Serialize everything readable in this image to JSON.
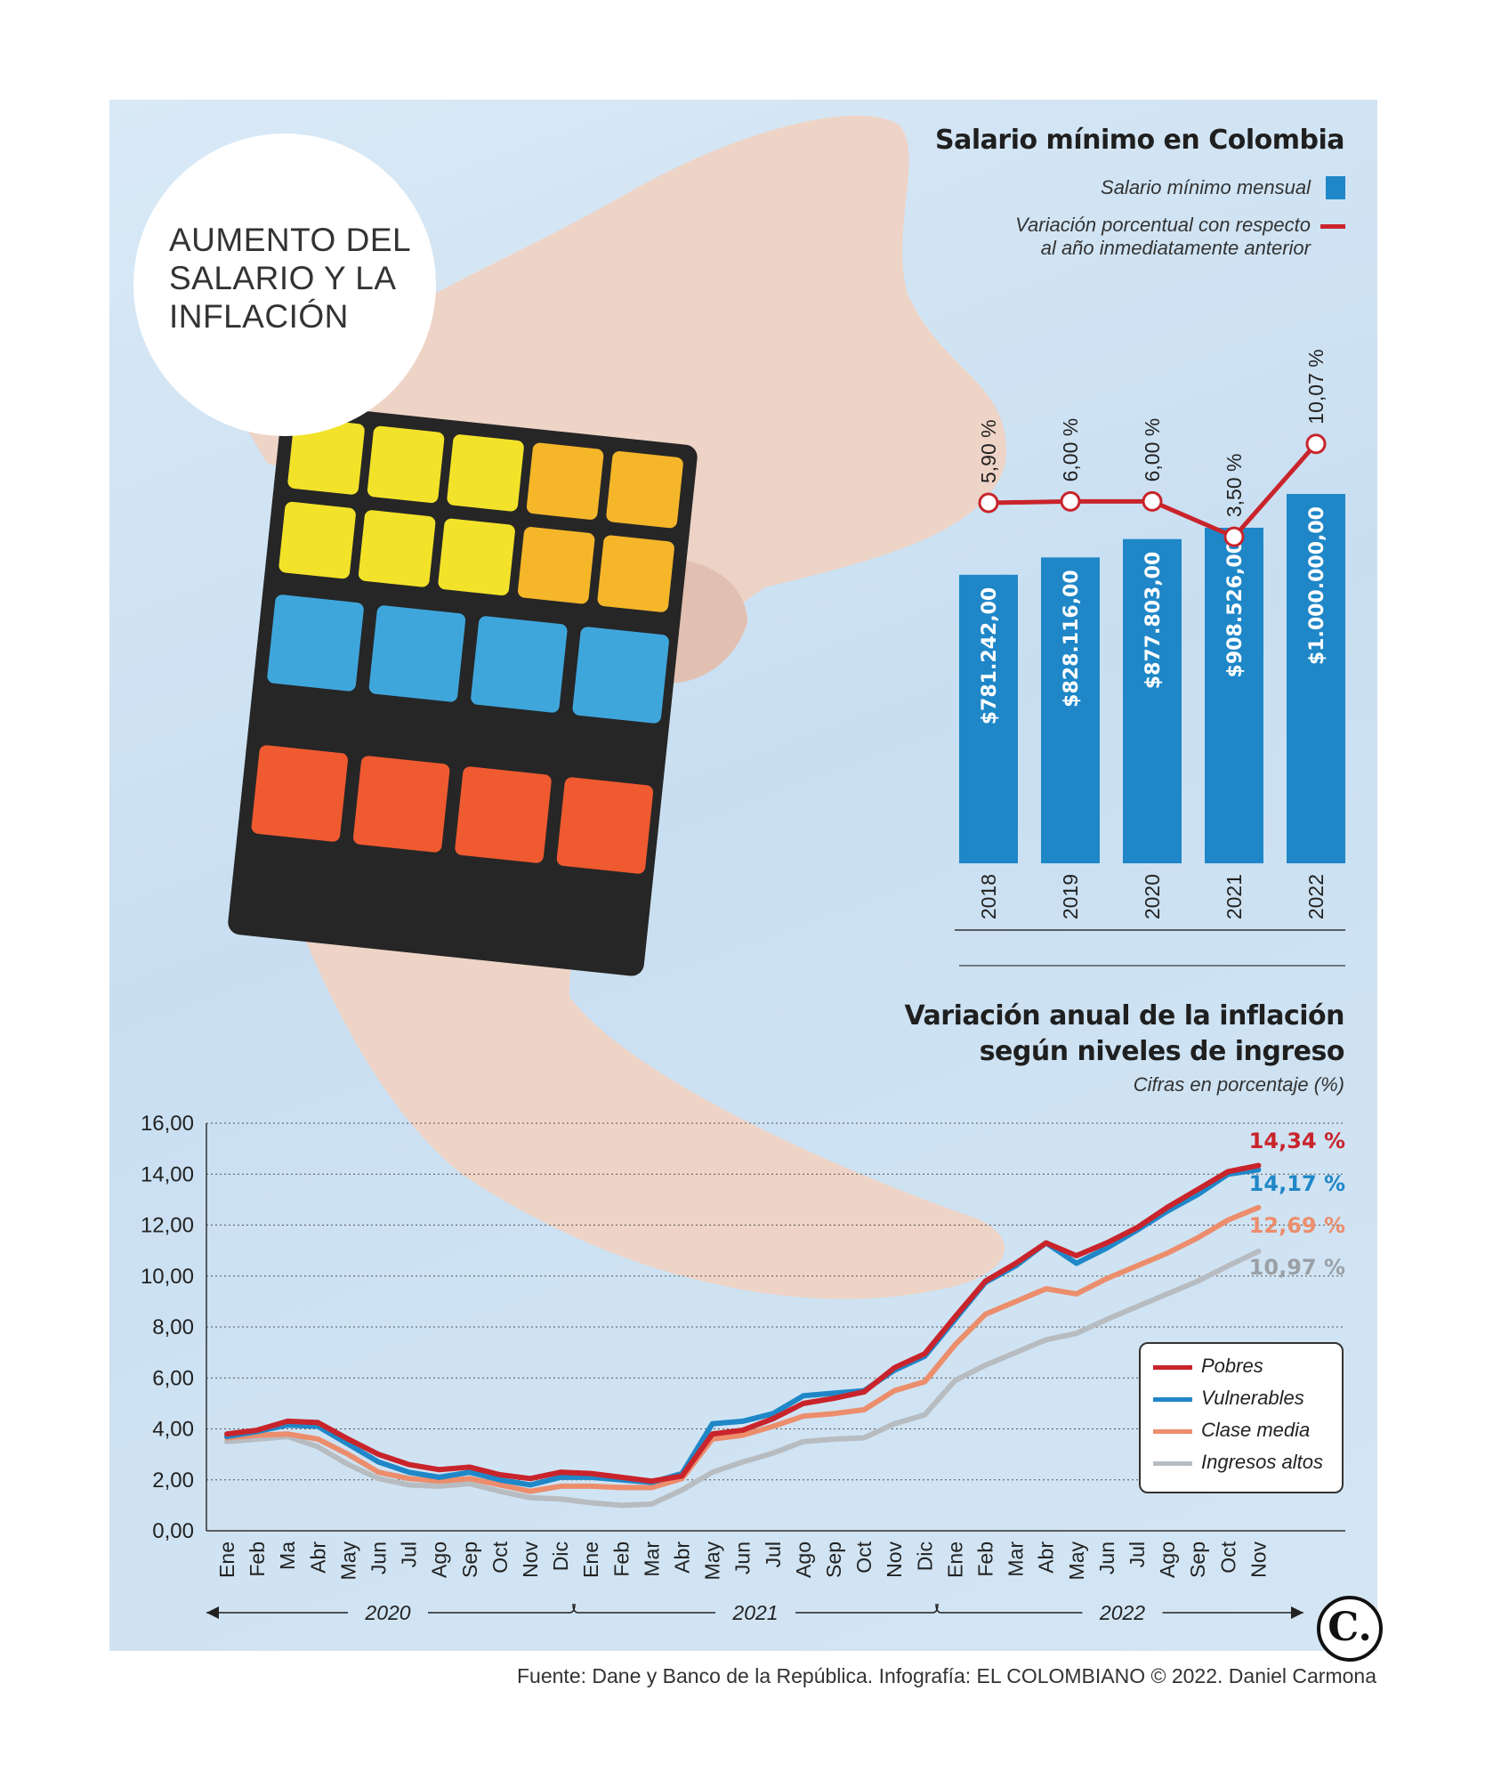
{
  "main_title": "AUMENTO DEL SALARIO Y LA INFLACIÓN",
  "source_text": "Fuente: Dane y Banco de la República. Infografía: EL COLOMBIANO © 2022. Daniel Carmona",
  "logo_letter": "C.",
  "colors": {
    "bar": "#1f87c8",
    "pct_line": "#c9242b",
    "pobres": "#c9242b",
    "vulnerables": "#1f87c8",
    "clase_media": "#ec8d6c",
    "ingresos_altos": "#b7bcc1"
  },
  "chart_data": [
    {
      "type": "bar",
      "title": "Salario mínimo en Colombia",
      "legend": {
        "bar_label": "Salario mínimo mensual",
        "line_label_1": "Variación porcentual con respecto",
        "line_label_2": "al año inmediatamente anterior"
      },
      "categories": [
        "2018",
        "2019",
        "2020",
        "2021",
        "2022"
      ],
      "values": [
        781242,
        828116,
        877803,
        908526,
        1000000
      ],
      "value_labels": [
        "$781.242,00",
        "$828.116,00",
        "$877.803,00",
        "$908.526,00",
        "$1.000.000,00"
      ],
      "line_series": {
        "values": [
          5.9,
          6.0,
          6.0,
          3.5,
          10.07
        ],
        "labels": [
          "5,90 %",
          "6,00 %",
          "6,00 %",
          "3,50 %",
          "10,07 %"
        ]
      }
    },
    {
      "type": "line",
      "title_line1": "Variación anual de la inflación",
      "title_line2": "según niveles de ingreso",
      "subtitle": "Cifras en porcentaje (%)",
      "ylim": [
        0,
        16
      ],
      "y_ticks": [
        "0,00",
        "2,00",
        "4,00",
        "6,00",
        "8,00",
        "10,00",
        "12,00",
        "14,00",
        "16,00"
      ],
      "x_labels": [
        "Ene",
        "Feb",
        "Ma",
        "Abr",
        "May",
        "Jun",
        "Jul",
        "Ago",
        "Sep",
        "Oct",
        "Nov",
        "Dic",
        "Ene",
        "Feb",
        "Mar",
        "Abr",
        "May",
        "Jun",
        "Jul",
        "Ago",
        "Sep",
        "Oct",
        "Nov",
        "Dic",
        "Ene",
        "Feb",
        "Mar",
        "Abr",
        "May",
        "Jun",
        "Jul",
        "Ago",
        "Sep",
        "Oct",
        "Nov"
      ],
      "year_labels": [
        "2020",
        "2021",
        "2022"
      ],
      "series": [
        {
          "name": "Pobres",
          "end_label": "14,34 %",
          "values": [
            3.8,
            3.95,
            4.3,
            4.25,
            3.6,
            3.0,
            2.6,
            2.4,
            2.5,
            2.2,
            2.05,
            2.3,
            2.25,
            2.1,
            1.95,
            2.15,
            3.8,
            3.95,
            4.4,
            5.0,
            5.2,
            5.45,
            6.4,
            6.95,
            8.4,
            9.8,
            10.5,
            11.3,
            10.8,
            11.3,
            11.9,
            12.7,
            13.4,
            14.1,
            14.34
          ]
        },
        {
          "name": "Vulnerables",
          "end_label": "14,17 %",
          "values": [
            3.7,
            3.9,
            4.15,
            4.1,
            3.4,
            2.7,
            2.3,
            2.1,
            2.3,
            2.0,
            1.8,
            2.1,
            2.1,
            2.0,
            1.9,
            2.25,
            4.2,
            4.3,
            4.6,
            5.3,
            5.4,
            5.5,
            6.3,
            6.85,
            8.3,
            9.75,
            10.4,
            11.3,
            10.5,
            11.1,
            11.8,
            12.55,
            13.2,
            14.0,
            14.17
          ]
        },
        {
          "name": "Clase media",
          "end_label": "12,69 %",
          "values": [
            3.65,
            3.75,
            3.8,
            3.6,
            3.0,
            2.3,
            2.05,
            1.95,
            2.05,
            1.8,
            1.55,
            1.75,
            1.75,
            1.7,
            1.7,
            2.05,
            3.6,
            3.75,
            4.1,
            4.5,
            4.6,
            4.75,
            5.5,
            5.85,
            7.3,
            8.5,
            9.0,
            9.5,
            9.3,
            9.9,
            10.4,
            10.9,
            11.5,
            12.2,
            12.69
          ]
        },
        {
          "name": "Ingresos altos",
          "end_label": "10,97 %",
          "values": [
            3.5,
            3.6,
            3.7,
            3.3,
            2.6,
            2.05,
            1.8,
            1.75,
            1.85,
            1.55,
            1.3,
            1.25,
            1.1,
            1.0,
            1.05,
            1.6,
            2.3,
            2.7,
            3.05,
            3.5,
            3.6,
            3.65,
            4.2,
            4.55,
            5.9,
            6.5,
            7.0,
            7.5,
            7.75,
            8.3,
            8.8,
            9.3,
            9.8,
            10.4,
            10.97
          ]
        }
      ]
    }
  ]
}
